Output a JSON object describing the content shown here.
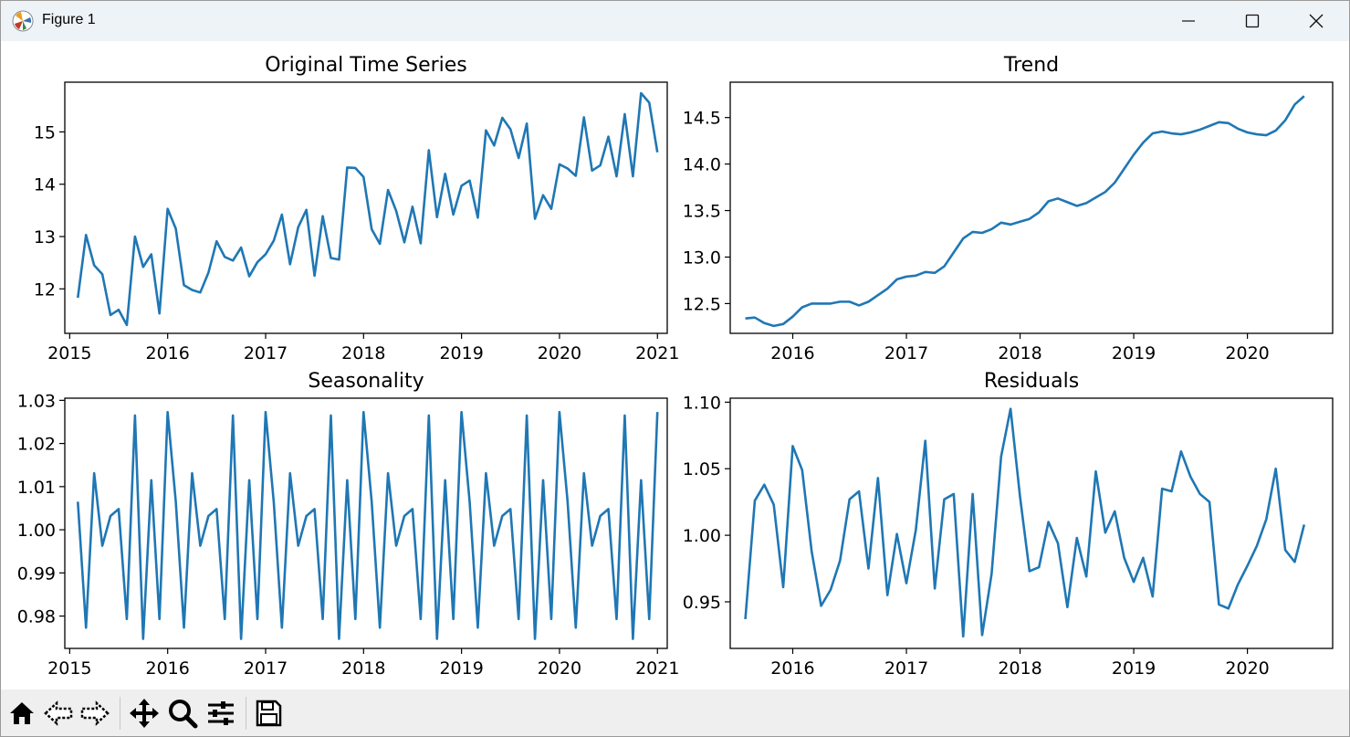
{
  "window": {
    "title": "Figure 1"
  },
  "toolbar": {
    "icons": [
      "home-icon",
      "back-icon",
      "forward-icon",
      "pan-icon",
      "zoom-icon",
      "configure-icon",
      "save-icon"
    ]
  },
  "colors": {
    "line": "#1f77b4",
    "titlebar": "#eef3f8",
    "toolbar": "#efefef"
  },
  "chart_data": [
    {
      "type": "line",
      "title": "Original Time Series",
      "xlabel": "",
      "ylabel": "",
      "xlim": [
        2014.95,
        2021.1
      ],
      "ylim": [
        11.15,
        15.95
      ],
      "xticks": [
        2015,
        2016,
        2017,
        2018,
        2019,
        2020,
        2021
      ],
      "xtick_labels": [
        "2015",
        "2016",
        "2017",
        "2018",
        "2019",
        "2020",
        "2021"
      ],
      "yticks": [
        12,
        13,
        14,
        15
      ],
      "ytick_labels": [
        "12",
        "13",
        "14",
        "15"
      ],
      "grid": false,
      "series": [
        {
          "values": [
            11.83,
            13.03,
            12.45,
            12.28,
            11.5,
            11.6,
            11.31,
            13.0,
            12.42,
            12.66,
            11.53,
            13.53,
            13.15,
            12.07,
            11.98,
            11.93,
            12.31,
            12.91,
            12.61,
            12.54,
            12.79,
            12.24,
            12.51,
            12.66,
            12.92,
            13.42,
            12.47,
            13.18,
            13.51,
            12.25,
            13.39,
            12.59,
            12.56,
            14.32,
            14.31,
            14.14,
            13.14,
            12.86,
            13.89,
            13.49,
            12.89,
            13.57,
            12.87,
            14.65,
            13.37,
            14.2,
            13.42,
            13.97,
            14.07,
            13.36,
            15.03,
            14.74,
            15.27,
            15.05,
            14.5,
            15.16,
            13.34,
            13.79,
            13.53,
            14.38,
            14.3,
            14.16,
            15.28,
            14.26,
            14.36,
            14.91,
            14.15,
            15.34,
            14.15,
            15.74,
            15.56,
            14.61
          ]
        }
      ],
      "x_start": 2015.083,
      "x_step": 0.08333
    },
    {
      "type": "line",
      "title": "Trend",
      "xlabel": "",
      "ylabel": "",
      "xlim": [
        2015.45,
        2020.75
      ],
      "ylim": [
        12.18,
        14.88
      ],
      "xticks": [
        2016,
        2017,
        2018,
        2019,
        2020
      ],
      "xtick_labels": [
        "2016",
        "2017",
        "2018",
        "2019",
        "2020"
      ],
      "yticks": [
        12.5,
        13.0,
        13.5,
        14.0,
        14.5
      ],
      "ytick_labels": [
        "12.5",
        "13.0",
        "13.5",
        "14.0",
        "14.5"
      ],
      "grid": false,
      "series": [
        {
          "values": [
            12.34,
            12.35,
            12.29,
            12.26,
            12.28,
            12.36,
            12.46,
            12.5,
            12.5,
            12.5,
            12.52,
            12.52,
            12.48,
            12.52,
            12.59,
            12.66,
            12.76,
            12.79,
            12.8,
            12.84,
            12.83,
            12.9,
            13.05,
            13.2,
            13.27,
            13.26,
            13.3,
            13.37,
            13.35,
            13.38,
            13.41,
            13.48,
            13.6,
            13.63,
            13.59,
            13.55,
            13.58,
            13.64,
            13.7,
            13.8,
            13.95,
            14.1,
            14.23,
            14.33,
            14.35,
            14.33,
            14.32,
            14.34,
            14.37,
            14.41,
            14.45,
            14.44,
            14.38,
            14.34,
            14.32,
            14.31,
            14.36,
            14.47,
            14.64,
            14.73
          ]
        }
      ],
      "x_start": 2015.583,
      "x_step": 0.08333
    },
    {
      "type": "line",
      "title": "Seasonality",
      "xlabel": "",
      "ylabel": "",
      "xlim": [
        2014.95,
        2021.1
      ],
      "ylim": [
        0.9725,
        1.0305
      ],
      "xticks": [
        2015,
        2016,
        2017,
        2018,
        2019,
        2020,
        2021
      ],
      "xtick_labels": [
        "2015",
        "2016",
        "2017",
        "2018",
        "2019",
        "2020",
        "2021"
      ],
      "yticks": [
        0.98,
        0.99,
        1.0,
        1.01,
        1.02,
        1.03
      ],
      "ytick_labels": [
        "0.98",
        "0.99",
        "1.00",
        "1.01",
        "1.02",
        "1.03"
      ],
      "grid": false,
      "series": [
        {
          "values": [
            1.0065,
            0.9773,
            1.0131,
            0.9963,
            1.0032,
            1.0048,
            0.9793,
            1.0265,
            0.9747,
            1.0115,
            0.9793,
            1.0273,
            1.0065,
            0.9773,
            1.0131,
            0.9963,
            1.0032,
            1.0048,
            0.9793,
            1.0265,
            0.9747,
            1.0115,
            0.9793,
            1.0273,
            1.0065,
            0.9773,
            1.0131,
            0.9963,
            1.0032,
            1.0048,
            0.9793,
            1.0265,
            0.9747,
            1.0115,
            0.9793,
            1.0273,
            1.0065,
            0.9773,
            1.0131,
            0.9963,
            1.0032,
            1.0048,
            0.9793,
            1.0265,
            0.9747,
            1.0115,
            0.9793,
            1.0273,
            1.0065,
            0.9773,
            1.0131,
            0.9963,
            1.0032,
            1.0048,
            0.9793,
            1.0265,
            0.9747,
            1.0115,
            0.9793,
            1.0273,
            1.0065,
            0.9773,
            1.0131,
            0.9963,
            1.0032,
            1.0048,
            0.9793,
            1.0265,
            0.9747,
            1.0115,
            0.9793,
            1.0273
          ]
        }
      ],
      "x_start": 2015.083,
      "x_step": 0.08333
    },
    {
      "type": "line",
      "title": "Residuals",
      "xlabel": "",
      "ylabel": "",
      "xlim": [
        2015.45,
        2020.75
      ],
      "ylim": [
        0.915,
        1.103
      ],
      "xticks": [
        2016,
        2017,
        2018,
        2019,
        2020
      ],
      "xtick_labels": [
        "2016",
        "2017",
        "2018",
        "2019",
        "2020"
      ],
      "yticks": [
        0.95,
        1.0,
        1.05,
        1.1
      ],
      "ytick_labels": [
        "0.95",
        "1.00",
        "1.05",
        "1.10"
      ],
      "grid": false,
      "series": [
        {
          "values": [
            0.937,
            1.026,
            1.038,
            1.023,
            0.961,
            1.067,
            1.049,
            0.988,
            0.947,
            0.959,
            0.981,
            1.027,
            1.033,
            0.975,
            1.043,
            0.955,
            1.001,
            0.964,
            1.004,
            1.071,
            0.96,
            1.027,
            1.031,
            0.924,
            1.031,
            0.925,
            0.971,
            1.059,
            1.095,
            1.029,
            0.973,
            0.976,
            1.01,
            0.994,
            0.946,
            0.998,
            0.969,
            1.048,
            1.002,
            1.018,
            0.983,
            0.965,
            0.983,
            0.954,
            1.035,
            1.033,
            1.063,
            1.044,
            1.031,
            1.025,
            0.948,
            0.945,
            0.963,
            0.977,
            0.992,
            1.012,
            1.05,
            0.989,
            0.98,
            1.008
          ]
        }
      ],
      "x_start": 2015.583,
      "x_step": 0.08333
    }
  ]
}
